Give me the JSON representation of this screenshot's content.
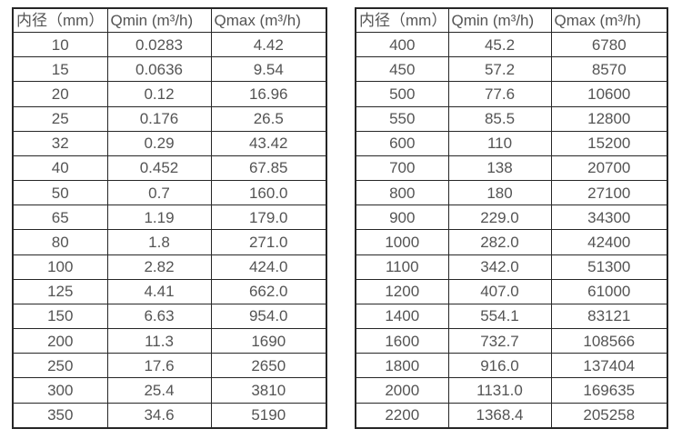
{
  "colors": {
    "background": "#ffffff",
    "border": "#262626",
    "text": "#545454"
  },
  "left_table": {
    "headers": [
      "内径（mm）",
      "Qmin (m³/h)",
      "Qmax (m³/h)"
    ],
    "rows": [
      [
        "10",
        "0.0283",
        "4.42"
      ],
      [
        "15",
        "0.0636",
        "9.54"
      ],
      [
        "20",
        "0.12",
        "16.96"
      ],
      [
        "25",
        "0.176",
        "26.5"
      ],
      [
        "32",
        "0.29",
        "43.42"
      ],
      [
        "40",
        "0.452",
        "67.85"
      ],
      [
        "50",
        "0.7",
        "160.0"
      ],
      [
        "65",
        "1.19",
        "179.0"
      ],
      [
        "80",
        "1.8",
        "271.0"
      ],
      [
        "100",
        "2.82",
        "424.0"
      ],
      [
        "125",
        "4.41",
        "662.0"
      ],
      [
        "150",
        "6.63",
        "954.0"
      ],
      [
        "200",
        "11.3",
        "1690"
      ],
      [
        "250",
        "17.6",
        "2650"
      ],
      [
        "300",
        "25.4",
        "3810"
      ],
      [
        "350",
        "34.6",
        "5190"
      ]
    ]
  },
  "right_table": {
    "headers": [
      "内径（mm）",
      "Qmin (m³/h)",
      "Qmax (m³/h)"
    ],
    "rows": [
      [
        "400",
        "45.2",
        "6780"
      ],
      [
        "450",
        "57.2",
        "8570"
      ],
      [
        "500",
        "77.6",
        "10600"
      ],
      [
        "550",
        "85.5",
        "12800"
      ],
      [
        "600",
        "110",
        "15200"
      ],
      [
        "700",
        "138",
        "20700"
      ],
      [
        "800",
        "180",
        "27100"
      ],
      [
        "900",
        "229.0",
        "34300"
      ],
      [
        "1000",
        "282.0",
        "42400"
      ],
      [
        "1100",
        "342.0",
        "51300"
      ],
      [
        "1200",
        "407.0",
        "61000"
      ],
      [
        "1400",
        "554.1",
        "83121"
      ],
      [
        "1600",
        "732.7",
        "108566"
      ],
      [
        "1800",
        "916.0",
        "137404"
      ],
      [
        "2000",
        "1131.0",
        "169635"
      ],
      [
        "2200",
        "1368.4",
        "205258"
      ]
    ]
  }
}
